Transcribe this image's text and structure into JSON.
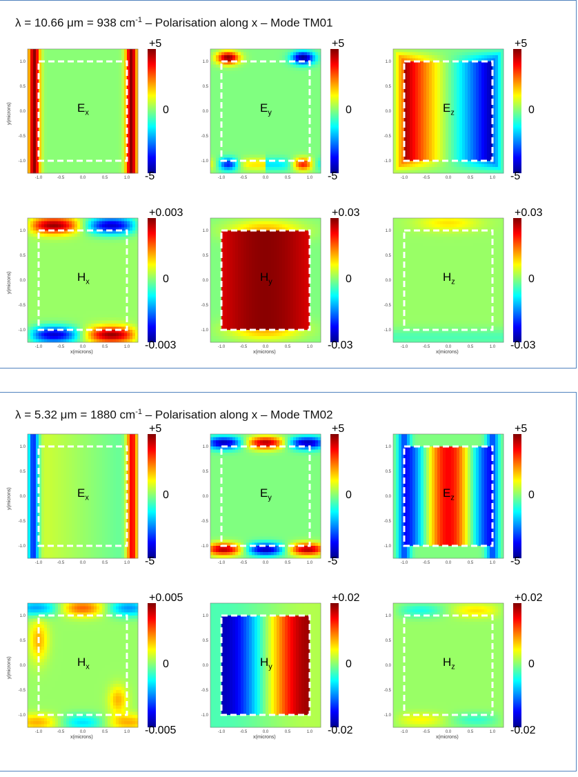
{
  "panels": [
    {
      "title_prefix": "λ = 10.66 μm = 938 cm",
      "title_sup": "-1",
      "title_suffix": " – Polarisation along x – Mode TM01",
      "rows": [
        {
          "colorbars": [
            {
              "top": "+5",
              "mid": "0",
              "bottom": "-5"
            },
            {
              "top": "+5",
              "mid": "0",
              "bottom": "-5"
            },
            {
              "top": "+5",
              "mid": "0",
              "bottom": "-5"
            }
          ]
        },
        {
          "colorbars": [
            {
              "top": "+0.003",
              "mid": "0",
              "bottom": "-0.003"
            },
            {
              "top": "+0.03",
              "mid": "0",
              "bottom": "-0.03"
            },
            {
              "top": "+0.03",
              "mid": "0",
              "bottom": "-0.03"
            }
          ]
        }
      ]
    },
    {
      "title_prefix": "λ = 5.32 μm = 1880 cm",
      "title_sup": "-1",
      "title_suffix": " – Polarisation along x – Mode TM02",
      "rows": [
        {
          "colorbars": [
            {
              "top": "+5",
              "mid": "0",
              "bottom": "-5"
            },
            {
              "top": "+5",
              "mid": "0",
              "bottom": "-5"
            },
            {
              "top": "+5",
              "mid": "0",
              "bottom": "-5"
            }
          ]
        },
        {
          "colorbars": [
            {
              "top": "+0.005",
              "mid": "0",
              "bottom": "-0.005"
            },
            {
              "top": "+0.02",
              "mid": "0",
              "bottom": "-0.02"
            },
            {
              "top": "+0.02",
              "mid": "0",
              "bottom": "-0.02"
            }
          ]
        }
      ]
    }
  ],
  "field_labels": {
    "Ex": {
      "main": "E",
      "sub": "x"
    },
    "Ey": {
      "main": "E",
      "sub": "y"
    },
    "Ez": {
      "main": "E",
      "sub": "z"
    },
    "Hx": {
      "main": "H",
      "sub": "x"
    },
    "Hy": {
      "main": "H",
      "sub": "y"
    },
    "Hz": {
      "main": "H",
      "sub": "z"
    }
  },
  "axis_text": {
    "ylabel": "y(microns)",
    "xlabel": "x(microns)",
    "x_ticks": [
      "-1.0",
      "-0.5",
      "0.0",
      "0.5",
      "1.0"
    ],
    "y_ticks": [
      "1.0",
      "0.5",
      "0.0",
      "-0.5",
      "-1.0"
    ]
  },
  "colors": {
    "colormap": [
      "#00008f",
      "#0000ff",
      "#0080ff",
      "#00ffff",
      "#80ff80",
      "#ffff00",
      "#ff8000",
      "#ff0000",
      "#800000"
    ],
    "panel_border": "#4f81bd",
    "guide_box": "#ffffff"
  },
  "chart_data": [
    {
      "type": "heatmap",
      "panel": 0,
      "field": "Ex",
      "x_range": [
        -1.25,
        1.25
      ],
      "y_range": [
        -1.25,
        1.25
      ],
      "clim": [
        -5,
        5
      ],
      "pattern": "strong positive field along left and right walls, near zero inside"
    },
    {
      "type": "heatmap",
      "panel": 0,
      "field": "Ey",
      "x_range": [
        -1.25,
        1.25
      ],
      "y_range": [
        -1.25,
        1.25
      ],
      "clim": [
        -5,
        5
      ],
      "pattern": "antisymmetric lobes at top and bottom corners"
    },
    {
      "type": "heatmap",
      "panel": 0,
      "field": "Ez",
      "x_range": [
        -1.25,
        1.25
      ],
      "y_range": [
        -1.25,
        1.25
      ],
      "clim": [
        -5,
        5
      ],
      "pattern": "positive on left, negative on right, linear gradient"
    },
    {
      "type": "heatmap",
      "panel": 0,
      "field": "Hx",
      "x_range": [
        -1.25,
        1.25
      ],
      "y_range": [
        -1.25,
        1.25
      ],
      "clim": [
        -0.003,
        0.003
      ],
      "pattern": "weak lobes at top and bottom edges"
    },
    {
      "type": "heatmap",
      "panel": 0,
      "field": "Hy",
      "x_range": [
        -1.25,
        1.25
      ],
      "y_range": [
        -1.25,
        1.25
      ],
      "clim": [
        -0.03,
        0.03
      ],
      "pattern": "strong uniform positive inside, max at center"
    },
    {
      "type": "heatmap",
      "panel": 0,
      "field": "Hz",
      "x_range": [
        -1.25,
        1.25
      ],
      "y_range": [
        -1.25,
        1.25
      ],
      "clim": [
        -0.03,
        0.03
      ],
      "pattern": "near zero, weak lobes top and bottom"
    },
    {
      "type": "heatmap",
      "panel": 1,
      "field": "Ex",
      "x_range": [
        -1.25,
        1.25
      ],
      "y_range": [
        -1.25,
        1.25
      ],
      "clim": [
        -5,
        5
      ],
      "pattern": "negative on left wall, positive on right wall"
    },
    {
      "type": "heatmap",
      "panel": 1,
      "field": "Ey",
      "x_range": [
        -1.25,
        1.25
      ],
      "y_range": [
        -1.25,
        1.25
      ],
      "clim": [
        -5,
        5
      ],
      "pattern": "alternating lobes at top and bottom edges"
    },
    {
      "type": "heatmap",
      "panel": 1,
      "field": "Ez",
      "x_range": [
        -1.25,
        1.25
      ],
      "y_range": [
        -1.25,
        1.25
      ],
      "clim": [
        -5,
        5
      ],
      "pattern": "negative at sides, positive at center"
    },
    {
      "type": "heatmap",
      "panel": 1,
      "field": "Hx",
      "x_range": [
        -1.25,
        1.25
      ],
      "y_range": [
        -1.25,
        1.25
      ],
      "clim": [
        -0.005,
        0.005
      ],
      "pattern": "weak lobes along edges"
    },
    {
      "type": "heatmap",
      "panel": 1,
      "field": "Hy",
      "x_range": [
        -1.25,
        1.25
      ],
      "y_range": [
        -1.25,
        1.25
      ],
      "clim": [
        -0.02,
        0.02
      ],
      "pattern": "negative left half, positive right half"
    },
    {
      "type": "heatmap",
      "panel": 1,
      "field": "Hz",
      "x_range": [
        -1.25,
        1.25
      ],
      "y_range": [
        -1.25,
        1.25
      ],
      "clim": [
        -0.02,
        0.02
      ],
      "pattern": "near zero, weak lobes top and bottom"
    }
  ]
}
